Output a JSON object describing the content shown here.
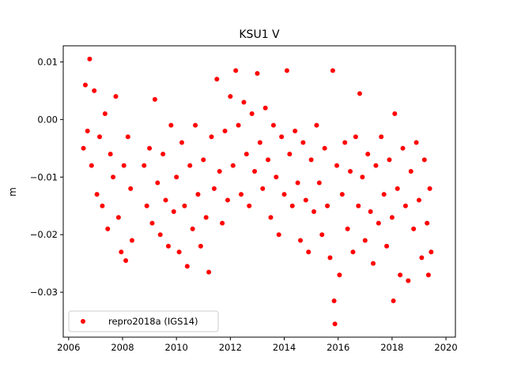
{
  "chart_data": {
    "type": "scatter",
    "title": "KSU1 V",
    "xlabel": "",
    "ylabel": "m",
    "xlim": [
      2005.8,
      2020.35
    ],
    "ylim": [
      -0.0378,
      0.0128
    ],
    "xticks": [
      2006,
      2008,
      2010,
      2012,
      2014,
      2016,
      2018,
      2020
    ],
    "xtick_labels": [
      "2006",
      "2008",
      "2010",
      "2012",
      "2014",
      "2016",
      "2018",
      "2020"
    ],
    "yticks": [
      -0.03,
      -0.02,
      -0.01,
      0.0,
      0.01
    ],
    "ytick_labels": [
      "−0.03",
      "−0.02",
      "−0.01",
      "0.00",
      "0.01"
    ],
    "grid": false,
    "legend_position": "lower-left",
    "series": [
      {
        "name": "repro2018a (IGS14)",
        "color": "#ff0000",
        "marker": "circle",
        "points": [
          [
            2006.55,
            -0.005
          ],
          [
            2006.62,
            0.006
          ],
          [
            2006.7,
            -0.002
          ],
          [
            2006.78,
            0.0105
          ],
          [
            2006.85,
            -0.008
          ],
          [
            2006.95,
            0.005
          ],
          [
            2007.05,
            -0.013
          ],
          [
            2007.15,
            -0.003
          ],
          [
            2007.25,
            -0.015
          ],
          [
            2007.35,
            0.001
          ],
          [
            2007.45,
            -0.019
          ],
          [
            2007.55,
            -0.006
          ],
          [
            2007.65,
            -0.01
          ],
          [
            2007.75,
            0.004
          ],
          [
            2007.85,
            -0.017
          ],
          [
            2007.95,
            -0.023
          ],
          [
            2008.05,
            -0.008
          ],
          [
            2008.12,
            -0.0245
          ],
          [
            2008.2,
            -0.003
          ],
          [
            2008.3,
            -0.012
          ],
          [
            2008.35,
            -0.021
          ],
          [
            2008.8,
            -0.008
          ],
          [
            2008.9,
            -0.015
          ],
          [
            2009.0,
            -0.005
          ],
          [
            2009.1,
            -0.018
          ],
          [
            2009.2,
            0.0035
          ],
          [
            2009.3,
            -0.011
          ],
          [
            2009.4,
            -0.02
          ],
          [
            2009.5,
            -0.006
          ],
          [
            2009.6,
            -0.014
          ],
          [
            2009.7,
            -0.022
          ],
          [
            2009.8,
            -0.001
          ],
          [
            2009.9,
            -0.016
          ],
          [
            2010.0,
            -0.01
          ],
          [
            2010.1,
            -0.023
          ],
          [
            2010.2,
            -0.004
          ],
          [
            2010.3,
            -0.015
          ],
          [
            2010.4,
            -0.0255
          ],
          [
            2010.5,
            -0.008
          ],
          [
            2010.6,
            -0.019
          ],
          [
            2010.7,
            -0.001
          ],
          [
            2010.8,
            -0.013
          ],
          [
            2010.9,
            -0.022
          ],
          [
            2011.0,
            -0.007
          ],
          [
            2011.1,
            -0.017
          ],
          [
            2011.2,
            -0.0265
          ],
          [
            2011.3,
            -0.003
          ],
          [
            2011.4,
            -0.012
          ],
          [
            2011.5,
            0.007
          ],
          [
            2011.6,
            -0.009
          ],
          [
            2011.7,
            -0.018
          ],
          [
            2011.8,
            -0.002
          ],
          [
            2011.9,
            -0.014
          ],
          [
            2012.0,
            0.004
          ],
          [
            2012.1,
            -0.008
          ],
          [
            2012.2,
            0.0085
          ],
          [
            2012.3,
            -0.001
          ],
          [
            2012.4,
            -0.013
          ],
          [
            2012.5,
            0.003
          ],
          [
            2012.6,
            -0.006
          ],
          [
            2012.7,
            -0.015
          ],
          [
            2012.8,
            0.001
          ],
          [
            2012.9,
            -0.009
          ],
          [
            2013.0,
            0.008
          ],
          [
            2013.1,
            -0.004
          ],
          [
            2013.2,
            -0.012
          ],
          [
            2013.3,
            0.002
          ],
          [
            2013.4,
            -0.007
          ],
          [
            2013.5,
            -0.017
          ],
          [
            2013.6,
            -0.001
          ],
          [
            2013.7,
            -0.01
          ],
          [
            2013.8,
            -0.02
          ],
          [
            2013.9,
            -0.003
          ],
          [
            2014.0,
            -0.013
          ],
          [
            2014.1,
            0.0085
          ],
          [
            2014.2,
            -0.006
          ],
          [
            2014.3,
            -0.015
          ],
          [
            2014.4,
            -0.002
          ],
          [
            2014.5,
            -0.011
          ],
          [
            2014.6,
            -0.021
          ],
          [
            2014.7,
            -0.004
          ],
          [
            2014.8,
            -0.014
          ],
          [
            2014.9,
            -0.023
          ],
          [
            2015.0,
            -0.007
          ],
          [
            2015.1,
            -0.016
          ],
          [
            2015.2,
            -0.001
          ],
          [
            2015.3,
            -0.011
          ],
          [
            2015.4,
            -0.02
          ],
          [
            2015.5,
            -0.005
          ],
          [
            2015.6,
            -0.015
          ],
          [
            2015.7,
            -0.024
          ],
          [
            2015.8,
            0.0085
          ],
          [
            2015.85,
            -0.0315
          ],
          [
            2015.88,
            -0.0355
          ],
          [
            2015.95,
            -0.008
          ],
          [
            2016.05,
            -0.027
          ],
          [
            2016.15,
            -0.013
          ],
          [
            2016.25,
            -0.004
          ],
          [
            2016.35,
            -0.019
          ],
          [
            2016.45,
            -0.009
          ],
          [
            2016.55,
            -0.023
          ],
          [
            2016.65,
            -0.003
          ],
          [
            2016.75,
            -0.015
          ],
          [
            2016.8,
            0.0045
          ],
          [
            2016.9,
            -0.01
          ],
          [
            2017.0,
            -0.021
          ],
          [
            2017.1,
            -0.006
          ],
          [
            2017.2,
            -0.016
          ],
          [
            2017.3,
            -0.025
          ],
          [
            2017.4,
            -0.008
          ],
          [
            2017.5,
            -0.018
          ],
          [
            2017.6,
            -0.003
          ],
          [
            2017.7,
            -0.013
          ],
          [
            2017.8,
            -0.022
          ],
          [
            2017.9,
            -0.007
          ],
          [
            2018.0,
            -0.017
          ],
          [
            2018.05,
            -0.0315
          ],
          [
            2018.1,
            0.001
          ],
          [
            2018.2,
            -0.012
          ],
          [
            2018.3,
            -0.027
          ],
          [
            2018.4,
            -0.005
          ],
          [
            2018.5,
            -0.015
          ],
          [
            2018.6,
            -0.028
          ],
          [
            2018.7,
            -0.009
          ],
          [
            2018.8,
            -0.019
          ],
          [
            2018.9,
            -0.004
          ],
          [
            2019.0,
            -0.014
          ],
          [
            2019.1,
            -0.024
          ],
          [
            2019.2,
            -0.007
          ],
          [
            2019.3,
            -0.018
          ],
          [
            2019.35,
            -0.027
          ],
          [
            2019.4,
            -0.012
          ],
          [
            2019.45,
            -0.023
          ]
        ]
      }
    ]
  }
}
